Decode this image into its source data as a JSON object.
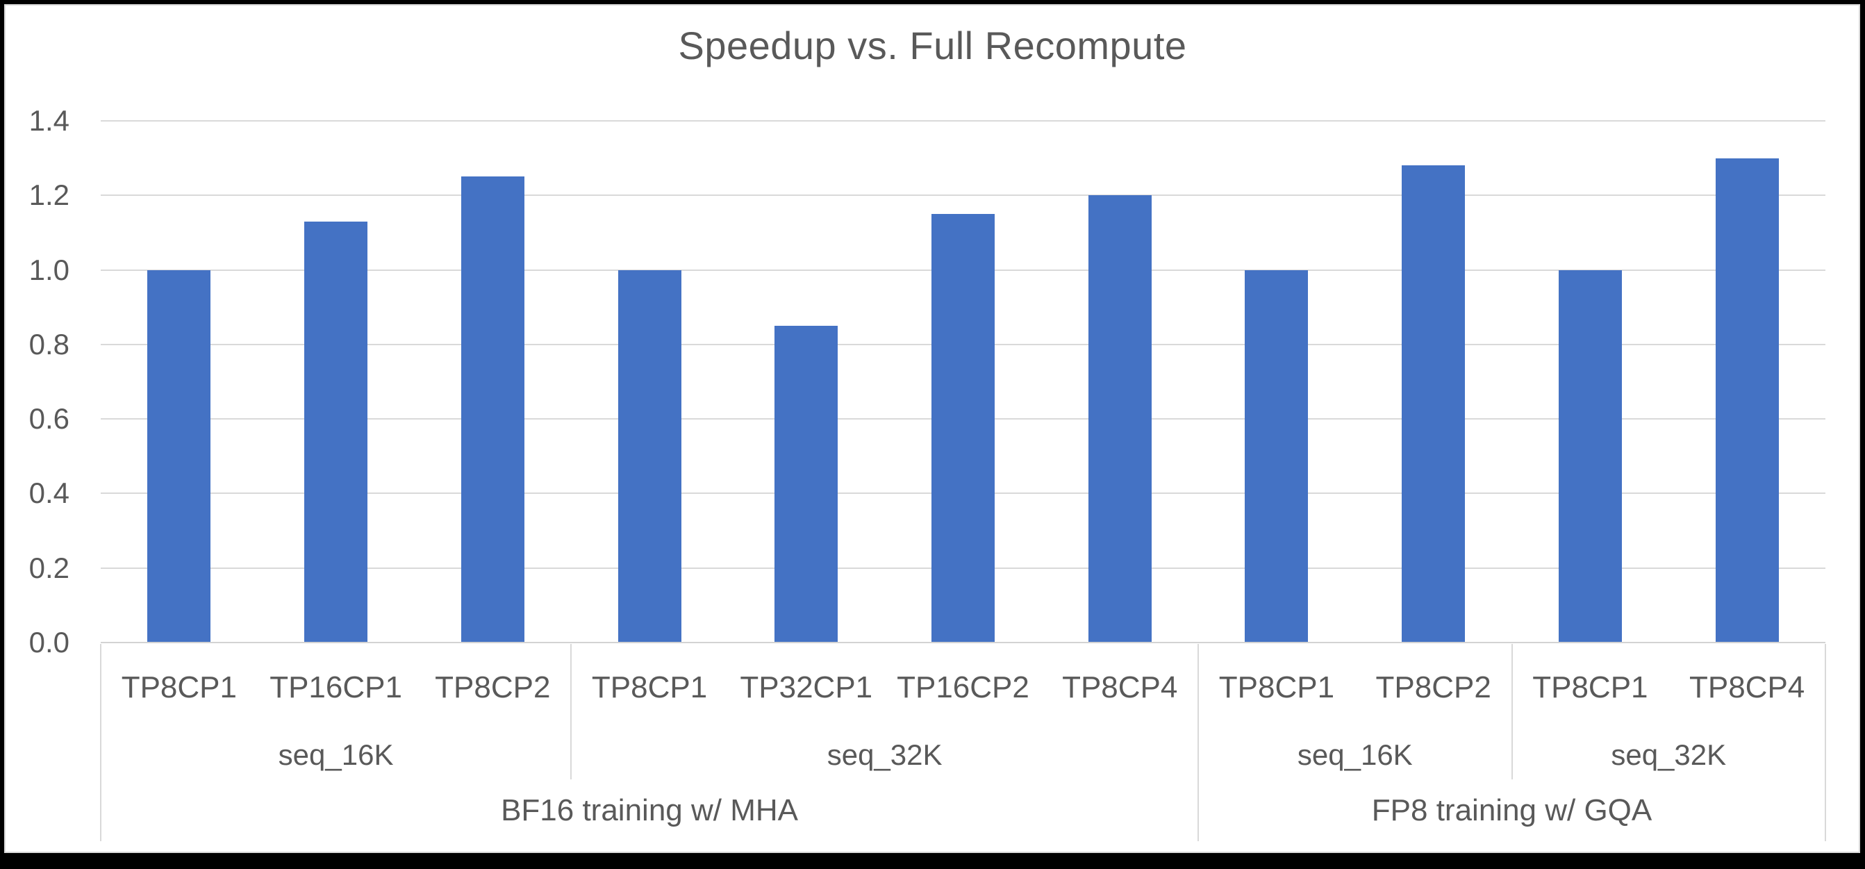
{
  "chart_data": {
    "type": "bar",
    "title": "Speedup vs. Full Recompute",
    "bar_color": "#4472C4",
    "text_color": "#595959",
    "gridline_color": "#D9D9D9",
    "grid": true,
    "legend": "none",
    "ylim": [
      0.0,
      1.4
    ],
    "ytick_labels": [
      "0.0",
      "0.2",
      "0.4",
      "0.6",
      "0.8",
      "1.0",
      "1.2",
      "1.4"
    ],
    "categories": [
      "TP8CP1",
      "TP16CP1",
      "TP8CP2",
      "TP8CP1",
      "TP32CP1",
      "TP16CP2",
      "TP8CP4",
      "TP8CP1",
      "TP8CP2",
      "TP8CP1",
      "TP8CP4"
    ],
    "values": [
      1.0,
      1.13,
      1.25,
      1.0,
      0.85,
      1.15,
      1.2,
      1.0,
      1.28,
      1.0,
      1.3
    ],
    "level2_groups": [
      {
        "label": "seq_16K",
        "span": 3
      },
      {
        "label": "seq_32K",
        "span": 4
      },
      {
        "label": "seq_16K",
        "span": 2
      },
      {
        "label": "seq_32K",
        "span": 2
      }
    ],
    "level3_groups": [
      {
        "label": "BF16 training w/ MHA",
        "span": 7
      },
      {
        "label": "FP8 training w/ GQA",
        "span": 4
      }
    ]
  }
}
